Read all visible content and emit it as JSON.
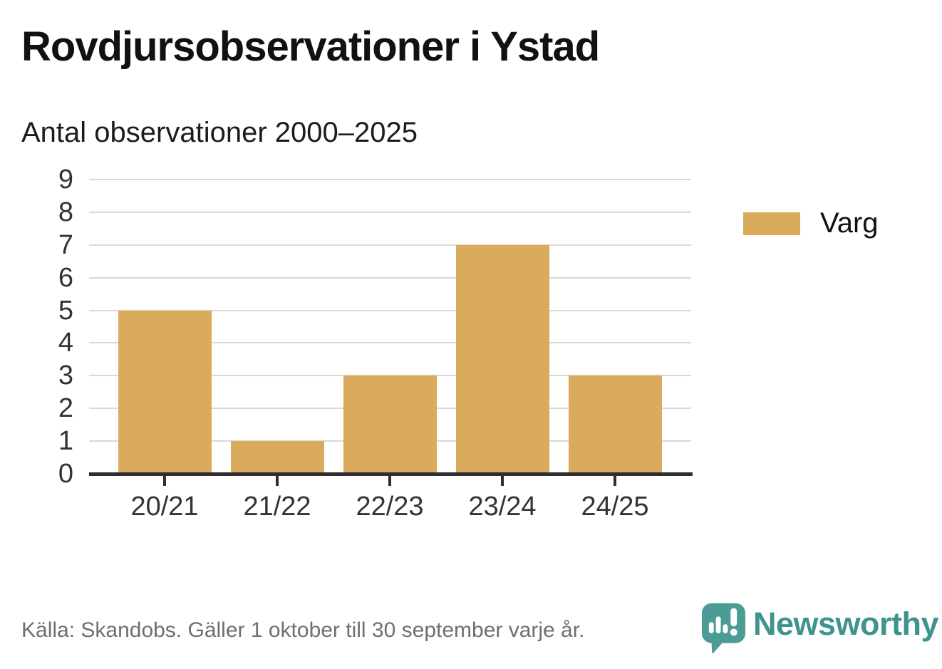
{
  "header": {
    "title": "Rovdjursobservationer i Ystad",
    "subtitle": "Antal observationer 2000–2025"
  },
  "chart_data": {
    "type": "bar",
    "categories": [
      "20/21",
      "21/22",
      "22/23",
      "23/24",
      "24/25"
    ],
    "series": [
      {
        "name": "Varg",
        "values": [
          5,
          1,
          3,
          7,
          3
        ]
      }
    ],
    "title": "Rovdjursobservationer i Ystad",
    "subtitle": "Antal observationer 2000–2025",
    "xlabel": "",
    "ylabel": "",
    "ylim": [
      0,
      9
    ],
    "yticks": [
      0,
      1,
      2,
      3,
      4,
      5,
      6,
      7,
      8,
      9
    ],
    "grid": true,
    "legend_position": "right"
  },
  "legend": {
    "items": [
      {
        "label": "Varg",
        "color": "#DAAB5C"
      }
    ]
  },
  "footer": {
    "source": "Källa: Skandobs. Gäller 1 oktober till 30 september varje år.",
    "brand": "Newsworthy"
  },
  "icons": {
    "brand_icon": "newsworthy-speech-bubble-chart-icon"
  },
  "colors": {
    "bar": "#DAAB5C",
    "axis": "#2E2E2E",
    "grid": "#D9D9D9",
    "tick_text": "#333333",
    "title_text": "#111111",
    "muted_text": "#6E6E73",
    "brand_teal": "#3E948D",
    "brand_teal_icon": "#4A9C95"
  }
}
